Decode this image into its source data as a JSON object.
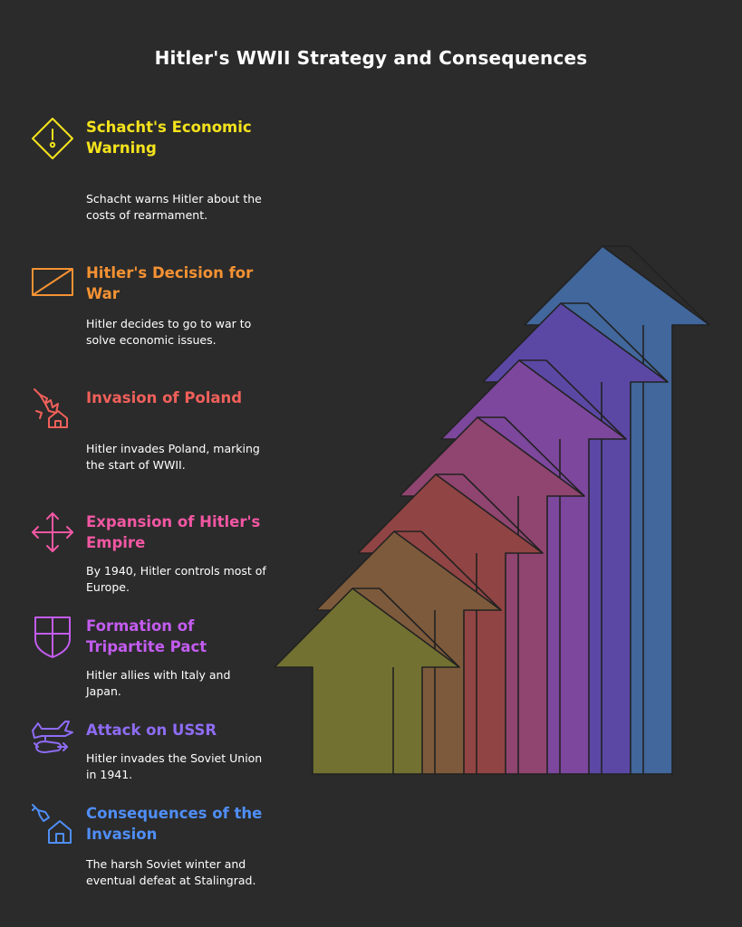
{
  "title": "Hitler's WWII Strategy and Consequences",
  "steps": [
    {
      "title": "Schacht's Economic Warning",
      "desc": "Schacht warns Hitler about the costs of rearmament.",
      "color": "#f5e31c",
      "icon": "warning-diamond-icon"
    },
    {
      "title": "Hitler's Decision for War",
      "desc": "Hitler decides to go to war to solve economic issues.",
      "color": "#f59233",
      "icon": "rectangle-slash-icon"
    },
    {
      "title": "Invasion of Poland",
      "desc": "Hitler invades Poland, marking the start of WWII.",
      "color": "#f0605a",
      "icon": "bombed-house-icon"
    },
    {
      "title": "Expansion of Hitler's Empire",
      "desc": "By 1940, Hitler controls most of Europe.",
      "color": "#f257a3",
      "icon": "move-arrows-icon"
    },
    {
      "title": "Formation of Tripartite Pact",
      "desc": "Hitler allies with Italy and Japan.",
      "color": "#c35cf0",
      "icon": "shield-cross-icon"
    },
    {
      "title": "Attack on USSR",
      "desc": "Hitler invades the Soviet Union in 1941.",
      "color": "#8e6cf5",
      "icon": "plane-bomb-icon"
    },
    {
      "title": "Consequences of the Invasion",
      "desc": "The harsh Soviet winter and eventual defeat at Stalingrad.",
      "color": "#4f8ef7",
      "icon": "house-missile-icon"
    }
  ],
  "arrow_colors": [
    "#737131",
    "#7d5a3b",
    "#904443",
    "#8f456f",
    "#7c479c",
    "#5b48a5",
    "#41679c"
  ]
}
